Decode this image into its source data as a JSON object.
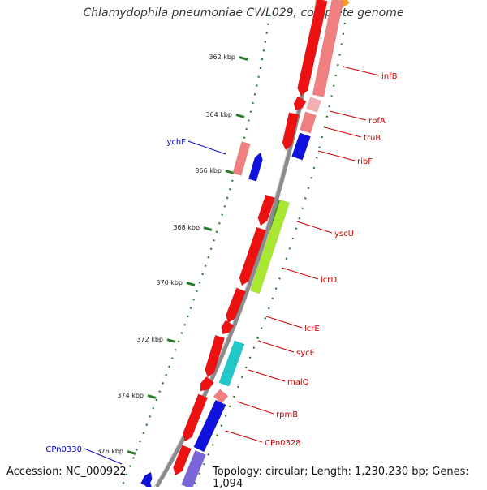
{
  "title": "Chlamydophila pneumoniae CWL029, complete genome",
  "footer": {
    "accession": "Accession: NC_000922",
    "info": "Topology: circular; Length: 1,230,230 bp; Genes: 1,094"
  },
  "ruler": {
    "unit": "kbp",
    "ticks": [
      {
        "kbp": 362,
        "label": "362 kbp"
      },
      {
        "kbp": 364,
        "label": "364 kbp"
      },
      {
        "kbp": 366,
        "label": "366 kbp"
      },
      {
        "kbp": 368,
        "label": "368 kbp"
      },
      {
        "kbp": 370,
        "label": "370 kbp"
      },
      {
        "kbp": 372,
        "label": "372 kbp"
      },
      {
        "kbp": 374,
        "label": "374 kbp"
      },
      {
        "kbp": 376,
        "label": "376 kbp"
      }
    ]
  },
  "colors": {
    "backbone": "#8c8c8c",
    "ticks": "#2a7d2a",
    "label_plus": "#cc0000",
    "label_minus": "#0000cc",
    "cds_red": "#ee1111",
    "cds_pink": "#f08080",
    "cds_blue": "#1111dd",
    "cds_teal": "#22c8c8",
    "cds_green": "#a8e830",
    "cds_dark_green": "#2f8a2f",
    "cds_orange": "#ff9922",
    "cds_lavender": "#7a66d8",
    "cds_light_pink": "#f4b0b0"
  },
  "genes": [
    {
      "name": "infB",
      "strand": "minus",
      "color": "cds_red"
    },
    {
      "name": "rbfA",
      "strand": "minus",
      "color": "cds_red"
    },
    {
      "name": "truB",
      "strand": "minus",
      "color": "cds_pink"
    },
    {
      "name": "ribF",
      "strand": "minus",
      "color": "cds_blue"
    },
    {
      "name": "ychF",
      "strand": "plus",
      "color": "cds_pink"
    },
    {
      "name": "yscU",
      "strand": "minus",
      "color": "cds_dark_green"
    },
    {
      "name": "lcrD",
      "strand": "minus",
      "color": "cds_green"
    },
    {
      "name": "lcrE",
      "strand": "minus",
      "color": "cds_red"
    },
    {
      "name": "sycE",
      "strand": "minus",
      "color": "cds_red"
    },
    {
      "name": "malQ",
      "strand": "minus",
      "color": "cds_teal"
    },
    {
      "name": "rpmB",
      "strand": "minus",
      "color": "cds_pink"
    },
    {
      "name": "CPn0328",
      "strand": "minus",
      "color": "cds_blue"
    },
    {
      "name": "CPn0330",
      "strand": "plus",
      "color": "cds_blue"
    }
  ]
}
